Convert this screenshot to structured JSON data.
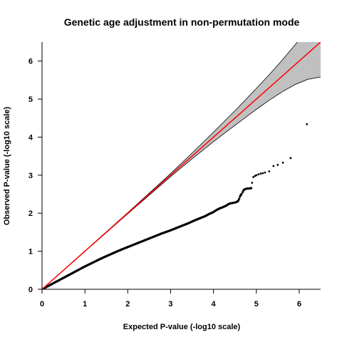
{
  "chart_data": {
    "type": "scatter",
    "title": "Genetic age adjustment in non-permutation mode",
    "xlabel": "Expected P-value (-log10 scale)",
    "ylabel": "Observed P-value (-log10 scale)",
    "xlim": [
      0,
      6.5
    ],
    "ylim": [
      0,
      6.5
    ],
    "x_ticks": [
      "0",
      "1",
      "2",
      "3",
      "4",
      "5",
      "6"
    ],
    "y_ticks": [
      "0",
      "1",
      "2",
      "3",
      "4",
      "5",
      "6"
    ],
    "grid": false,
    "legend": "none",
    "reference_line": {
      "name": "",
      "from": [
        0,
        0
      ],
      "to": [
        6.5,
        6.5
      ],
      "color": "#ff0000"
    },
    "confidence_band": {
      "color": "#c0c0c0",
      "x": [
        0,
        1,
        2,
        3,
        3.5,
        4,
        4.5,
        5,
        5.3,
        5.6,
        5.9,
        6.2,
        6.5
      ],
      "upper": [
        0,
        1.005,
        2.015,
        3.04,
        3.58,
        4.13,
        4.69,
        5.28,
        5.64,
        6.02,
        6.42,
        6.85,
        7.3
      ],
      "lower": [
        0,
        0.995,
        1.985,
        2.96,
        3.43,
        3.88,
        4.31,
        4.73,
        4.97,
        5.19,
        5.38,
        5.52,
        5.58
      ]
    },
    "series": [
      {
        "name": "",
        "color": "#000000",
        "points": [
          [
            0.02,
            0.01
          ],
          [
            0.05,
            0.03
          ],
          [
            0.1,
            0.06
          ],
          [
            0.15,
            0.09
          ],
          [
            0.2,
            0.12
          ],
          [
            0.3,
            0.18
          ],
          [
            0.4,
            0.24
          ],
          [
            0.5,
            0.3
          ],
          [
            0.6,
            0.36
          ],
          [
            0.7,
            0.42
          ],
          [
            0.8,
            0.48
          ],
          [
            0.9,
            0.54
          ],
          [
            1.0,
            0.6
          ],
          [
            1.2,
            0.71
          ],
          [
            1.4,
            0.82
          ],
          [
            1.6,
            0.92
          ],
          [
            1.8,
            1.02
          ],
          [
            2.0,
            1.11
          ],
          [
            2.2,
            1.2
          ],
          [
            2.4,
            1.29
          ],
          [
            2.6,
            1.38
          ],
          [
            2.8,
            1.47
          ],
          [
            3.0,
            1.55
          ],
          [
            3.2,
            1.64
          ],
          [
            3.4,
            1.73
          ],
          [
            3.6,
            1.83
          ],
          [
            3.8,
            1.92
          ],
          [
            3.9,
            1.98
          ],
          [
            4.0,
            2.03
          ],
          [
            4.05,
            2.07
          ],
          [
            4.1,
            2.1
          ],
          [
            4.15,
            2.13
          ],
          [
            4.2,
            2.15
          ],
          [
            4.3,
            2.2
          ],
          [
            4.35,
            2.24
          ],
          [
            4.4,
            2.26
          ],
          [
            4.45,
            2.27
          ],
          [
            4.5,
            2.28
          ],
          [
            4.55,
            2.3
          ],
          [
            4.58,
            2.33
          ],
          [
            4.6,
            2.38
          ],
          [
            4.62,
            2.44
          ],
          [
            4.65,
            2.5
          ],
          [
            4.68,
            2.55
          ],
          [
            4.7,
            2.6
          ],
          [
            4.73,
            2.63
          ],
          [
            4.76,
            2.64
          ],
          [
            4.8,
            2.65
          ],
          [
            4.85,
            2.65
          ],
          [
            4.88,
            2.66
          ],
          [
            4.9,
            2.8
          ],
          [
            4.93,
            2.95
          ],
          [
            4.97,
            2.98
          ],
          [
            5.0,
            3.0
          ],
          [
            5.05,
            3.02
          ],
          [
            5.1,
            3.04
          ],
          [
            5.15,
            3.05
          ],
          [
            5.2,
            3.07
          ],
          [
            5.3,
            3.1
          ],
          [
            5.4,
            3.24
          ],
          [
            5.5,
            3.27
          ],
          [
            5.62,
            3.33
          ],
          [
            5.8,
            3.45
          ],
          [
            6.18,
            4.34
          ]
        ]
      }
    ]
  }
}
